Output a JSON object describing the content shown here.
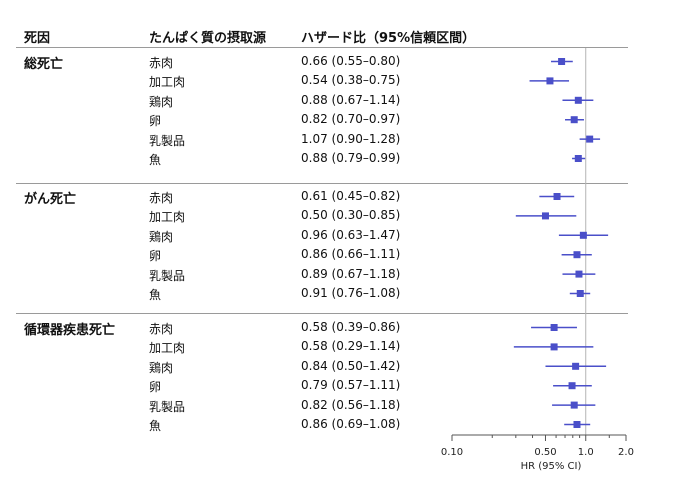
{
  "headers": {
    "cause": "死因",
    "food": "たんぱく質の摂取源",
    "hr": "ハザード比（95%信頼区間）"
  },
  "chart_data": {
    "type": "forest",
    "x_scale": "log",
    "xlim": [
      0.1,
      2.0
    ],
    "reference_line": 1.0,
    "x_ticks": [
      0.1,
      0.5,
      1.0,
      2.0
    ],
    "x_tick_labels": [
      "0.10",
      "0.50",
      "1.0",
      "2.0"
    ],
    "xlabel": "HR (95% CI)",
    "point_color": "#4a4fc9",
    "groups": [
      {
        "cause": "総死亡",
        "rows": [
          {
            "food": "赤肉",
            "label": "0.66 (0.55–0.80)",
            "hr": 0.66,
            "lo": 0.55,
            "hi": 0.8
          },
          {
            "food": "加工肉",
            "label": "0.54 (0.38–0.75)",
            "hr": 0.54,
            "lo": 0.38,
            "hi": 0.75
          },
          {
            "food": "鶏肉",
            "label": "0.88 (0.67–1.14)",
            "hr": 0.88,
            "lo": 0.67,
            "hi": 1.14
          },
          {
            "food": "卵",
            "label": "0.82 (0.70–0.97)",
            "hr": 0.82,
            "lo": 0.7,
            "hi": 0.97
          },
          {
            "food": "乳製品",
            "label": "1.07 (0.90–1.28)",
            "hr": 1.07,
            "lo": 0.9,
            "hi": 1.28
          },
          {
            "food": "魚",
            "label": "0.88 (0.79–0.99)",
            "hr": 0.88,
            "lo": 0.79,
            "hi": 0.99
          }
        ]
      },
      {
        "cause": "がん死亡",
        "rows": [
          {
            "food": "赤肉",
            "label": "0.61 (0.45–0.82)",
            "hr": 0.61,
            "lo": 0.45,
            "hi": 0.82
          },
          {
            "food": "加工肉",
            "label": "0.50 (0.30–0.85)",
            "hr": 0.5,
            "lo": 0.3,
            "hi": 0.85
          },
          {
            "food": "鶏肉",
            "label": "0.96 (0.63–1.47)",
            "hr": 0.96,
            "lo": 0.63,
            "hi": 1.47
          },
          {
            "food": "卵",
            "label": "0.86 (0.66–1.11)",
            "hr": 0.86,
            "lo": 0.66,
            "hi": 1.11
          },
          {
            "food": "乳製品",
            "label": "0.89 (0.67–1.18)",
            "hr": 0.89,
            "lo": 0.67,
            "hi": 1.18
          },
          {
            "food": "魚",
            "label": "0.91 (0.76–1.08)",
            "hr": 0.91,
            "lo": 0.76,
            "hi": 1.08
          }
        ]
      },
      {
        "cause": "循環器疾患死亡",
        "rows": [
          {
            "food": "赤肉",
            "label": "0.58 (0.39–0.86)",
            "hr": 0.58,
            "lo": 0.39,
            "hi": 0.86
          },
          {
            "food": "加工肉",
            "label": "0.58 (0.29–1.14)",
            "hr": 0.58,
            "lo": 0.29,
            "hi": 1.14
          },
          {
            "food": "鶏肉",
            "label": "0.84 (0.50–1.42)",
            "hr": 0.84,
            "lo": 0.5,
            "hi": 1.42
          },
          {
            "food": "卵",
            "label": "0.79 (0.57–1.11)",
            "hr": 0.79,
            "lo": 0.57,
            "hi": 1.11
          },
          {
            "food": "乳製品",
            "label": "0.82 (0.56–1.18)",
            "hr": 0.82,
            "lo": 0.56,
            "hi": 1.18
          },
          {
            "food": "魚",
            "label": "0.86 (0.69–1.08)",
            "hr": 0.86,
            "lo": 0.69,
            "hi": 1.08
          }
        ]
      }
    ]
  }
}
